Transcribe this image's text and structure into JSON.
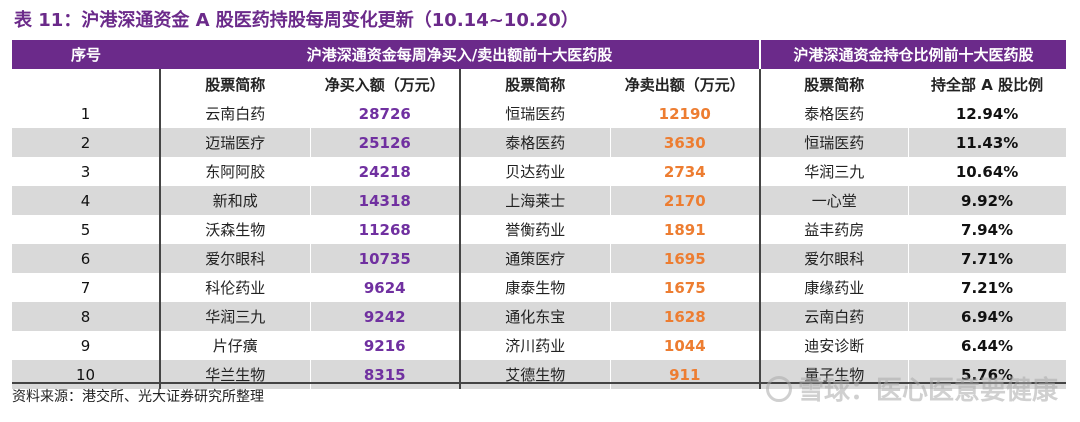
{
  "title": "表 11：沪港深通资金 A 股医药持股每周变化更新（10.14~10.20）",
  "header": {
    "col_index": "序号",
    "group_flow": "沪港深通资金每周净买入/卖出额前十大医药股",
    "group_hold": "沪港深通资金持仓比例前十大医药股"
  },
  "subheader": {
    "buy_name": "股票简称",
    "buy_value": "净买入额（万元）",
    "sell_name": "股票简称",
    "sell_value": "净卖出额（万元）",
    "hold_name": "股票简称",
    "hold_value": "持全部 A 股比例"
  },
  "rows": [
    {
      "idx": "1",
      "buy_name": "云南白药",
      "buy_value": "28726",
      "sell_name": "恒瑞医药",
      "sell_value": "12190",
      "hold_name": "泰格医药",
      "hold_value": "12.94%"
    },
    {
      "idx": "2",
      "buy_name": "迈瑞医疗",
      "buy_value": "25126",
      "sell_name": "泰格医药",
      "sell_value": "3630",
      "hold_name": "恒瑞医药",
      "hold_value": "11.43%"
    },
    {
      "idx": "3",
      "buy_name": "东阿阿胶",
      "buy_value": "24218",
      "sell_name": "贝达药业",
      "sell_value": "2734",
      "hold_name": "华润三九",
      "hold_value": "10.64%"
    },
    {
      "idx": "4",
      "buy_name": "新和成",
      "buy_value": "14318",
      "sell_name": "上海莱士",
      "sell_value": "2170",
      "hold_name": "一心堂",
      "hold_value": "9.92%"
    },
    {
      "idx": "5",
      "buy_name": "沃森生物",
      "buy_value": "11268",
      "sell_name": "誉衡药业",
      "sell_value": "1891",
      "hold_name": "益丰药房",
      "hold_value": "7.94%"
    },
    {
      "idx": "6",
      "buy_name": "爱尔眼科",
      "buy_value": "10735",
      "sell_name": "通策医疗",
      "sell_value": "1695",
      "hold_name": "爱尔眼科",
      "hold_value": "7.71%"
    },
    {
      "idx": "7",
      "buy_name": "科伦药业",
      "buy_value": "9624",
      "sell_name": "康泰生物",
      "sell_value": "1675",
      "hold_name": "康缘药业",
      "hold_value": "7.21%"
    },
    {
      "idx": "8",
      "buy_name": "华润三九",
      "buy_value": "9242",
      "sell_name": "通化东宝",
      "sell_value": "1628",
      "hold_name": "云南白药",
      "hold_value": "6.94%"
    },
    {
      "idx": "9",
      "buy_name": "片仔癀",
      "buy_value": "9216",
      "sell_name": "济川药业",
      "sell_value": "1044",
      "hold_name": "迪安诊断",
      "hold_value": "6.44%"
    },
    {
      "idx": "10",
      "buy_name": "华兰生物",
      "buy_value": "8315",
      "sell_name": "艾德生物",
      "sell_value": "911",
      "hold_name": "量子生物",
      "hold_value": "5.76%"
    }
  ],
  "source": "资料来源：港交所、光大证券研究所整理",
  "watermark": "雪球：医心医意要健康",
  "colors": {
    "header_bg": "#6b2a8a",
    "buy_value": "#7030a0",
    "sell_value": "#ed7d31",
    "stripe": "#d9d9d9"
  }
}
